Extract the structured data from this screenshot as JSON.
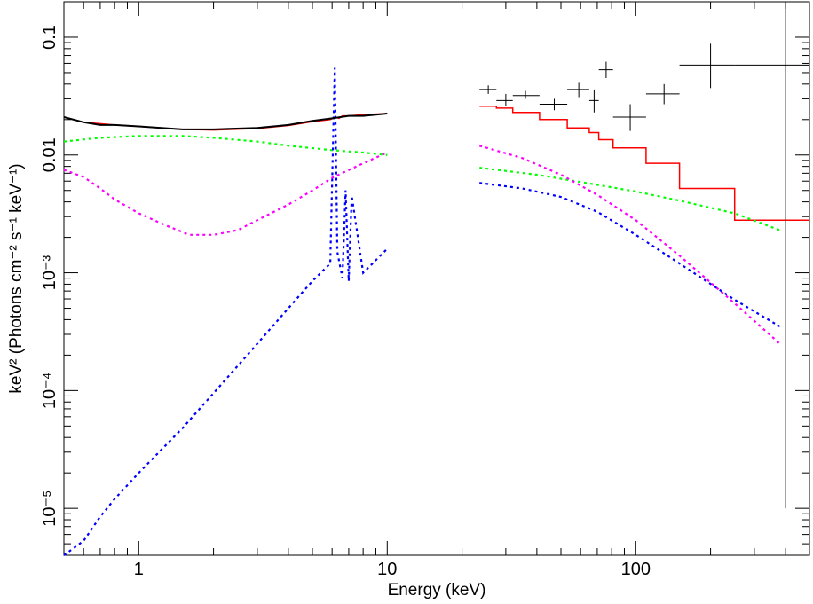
{
  "chart_data": {
    "type": "line",
    "xlabel": "Energy (keV)",
    "ylabel": "keV² (Photons cm⁻² s⁻¹ keV⁻¹)",
    "x_scale": "log",
    "y_scale": "log",
    "xlim": [
      0.5,
      500
    ],
    "ylim": [
      4e-06,
      0.2
    ],
    "x_ticks": [
      {
        "value": 1,
        "label": "1"
      },
      {
        "value": 10,
        "label": "10"
      },
      {
        "value": 100,
        "label": "100"
      }
    ],
    "y_ticks": [
      {
        "value": 0.1,
        "label": "0.1"
      },
      {
        "value": 0.01,
        "label": "0.01"
      },
      {
        "value": 0.001,
        "label": "10⁻³"
      },
      {
        "value": 0.0001,
        "label": "10⁻⁴"
      },
      {
        "value": 1e-05,
        "label": "10⁻⁵"
      }
    ],
    "grid": false,
    "legend": "none",
    "colors": {
      "data": "#000000",
      "total_model": "#ff0000",
      "component_green": "#00ff00",
      "component_magenta": "#ff00ff",
      "component_blue": "#0000ff"
    },
    "low_energy_data": {
      "x": [
        0.5,
        0.6,
        0.7,
        0.8,
        1,
        1.5,
        2,
        3,
        4,
        5,
        6,
        7,
        8,
        9,
        10
      ],
      "y": [
        0.021,
        0.019,
        0.018,
        0.018,
        0.0175,
        0.0165,
        0.0165,
        0.017,
        0.018,
        0.0195,
        0.0205,
        0.0215,
        0.0215,
        0.022,
        0.0225
      ]
    },
    "high_energy_data": [
      {
        "x": 25.5,
        "xerr": [
          23.5,
          27.5
        ],
        "y": 0.036,
        "yerr": [
          0.033,
          0.039
        ]
      },
      {
        "x": 30,
        "xerr": [
          27.5,
          32
        ],
        "y": 0.029,
        "yerr": [
          0.026,
          0.033
        ]
      },
      {
        "x": 36,
        "xerr": [
          32,
          41
        ],
        "y": 0.032,
        "yerr": [
          0.03,
          0.035
        ]
      },
      {
        "x": 47,
        "xerr": [
          41,
          53
        ],
        "y": 0.027,
        "yerr": [
          0.024,
          0.03
        ]
      },
      {
        "x": 59,
        "xerr": [
          53,
          65
        ],
        "y": 0.036,
        "yerr": [
          0.031,
          0.041
        ]
      },
      {
        "x": 68,
        "xerr": [
          65,
          71
        ],
        "y": 0.029,
        "yerr": [
          0.023,
          0.036
        ]
      },
      {
        "x": 76,
        "xerr": [
          71,
          81
        ],
        "y": 0.053,
        "yerr": [
          0.045,
          0.062
        ]
      },
      {
        "x": 95,
        "xerr": [
          81,
          110
        ],
        "y": 0.021,
        "yerr": [
          0.016,
          0.027
        ]
      },
      {
        "x": 130,
        "xerr": [
          110,
          150
        ],
        "y": 0.033,
        "yerr": [
          0.027,
          0.04
        ]
      },
      {
        "x": 200,
        "xerr": [
          150,
          250
        ],
        "y": 0.058,
        "yerr": [
          0.037,
          0.088
        ]
      },
      {
        "x": 400,
        "xerr": [
          250,
          500
        ],
        "y": 0.058,
        "yerr": [
          1e-05,
          0.2
        ]
      }
    ],
    "series": [
      {
        "color": "total_model",
        "style": "solid",
        "segments": [
          {
            "x": [
              0.5,
              0.6,
              0.8,
              1,
              1.5,
              2,
              3,
              4,
              5,
              5.9,
              6.2,
              6.4,
              6.6,
              7,
              8,
              10
            ],
            "y": [
              0.021,
              0.019,
              0.018,
              0.0175,
              0.0165,
              0.0163,
              0.0168,
              0.0178,
              0.0192,
              0.02,
              0.021,
              0.0205,
              0.0215,
              0.0215,
              0.022,
              0.0225
            ]
          }
        ],
        "steps": [
          {
            "x0": 23.5,
            "x1": 27.5,
            "y": 0.026
          },
          {
            "x0": 27.5,
            "x1": 32,
            "y": 0.025
          },
          {
            "x0": 32,
            "x1": 41,
            "y": 0.023
          },
          {
            "x0": 41,
            "x1": 53,
            "y": 0.02
          },
          {
            "x0": 53,
            "x1": 65,
            "y": 0.017
          },
          {
            "x0": 65,
            "x1": 71,
            "y": 0.0155
          },
          {
            "x0": 71,
            "x1": 81,
            "y": 0.0135
          },
          {
            "x0": 81,
            "x1": 110,
            "y": 0.0115
          },
          {
            "x0": 110,
            "x1": 150,
            "y": 0.0085
          },
          {
            "x0": 150,
            "x1": 250,
            "y": 0.0052
          },
          {
            "x0": 250,
            "x1": 500,
            "y": 0.0028
          }
        ]
      },
      {
        "color": "component_green",
        "style": "dotted",
        "segments": [
          {
            "x": [
              0.5,
              0.7,
              1,
              1.5,
              2,
              3,
              4,
              6,
              8,
              10
            ],
            "y": [
              0.013,
              0.014,
              0.0145,
              0.0145,
              0.014,
              0.013,
              0.012,
              0.011,
              0.0105,
              0.01
            ]
          },
          {
            "x": [
              23.5,
              40,
              60,
              100,
              150,
              250,
              380
            ],
            "y": [
              0.0078,
              0.0068,
              0.0059,
              0.0049,
              0.0041,
              0.0032,
              0.0023
            ]
          }
        ]
      },
      {
        "color": "component_magenta",
        "style": "dotted",
        "segments": [
          {
            "x": [
              0.5,
              0.6,
              0.7,
              0.8,
              1,
              1.3,
              1.6,
              2,
              2.5,
              3,
              4,
              5,
              6,
              8,
              10
            ],
            "y": [
              0.0075,
              0.0065,
              0.0052,
              0.0042,
              0.0032,
              0.0025,
              0.0021,
              0.0021,
              0.0023,
              0.0028,
              0.0038,
              0.005,
              0.0064,
              0.0085,
              0.0105
            ]
          },
          {
            "x": [
              23.5,
              35,
              50,
              70,
              100,
              150,
              250,
              380
            ],
            "y": [
              0.012,
              0.0094,
              0.0068,
              0.0046,
              0.0028,
              0.0014,
              0.00055,
              0.00025
            ]
          }
        ]
      },
      {
        "color": "component_blue",
        "style": "dotted",
        "segments": [
          {
            "x": [
              0.5,
              0.6,
              0.7,
              0.8,
              1,
              1.5,
              2,
              3,
              4,
              5,
              5.9,
              6.15,
              6.3,
              6.6,
              6.8,
              7,
              7.2,
              8,
              10
            ],
            "y": [
              4e-06,
              5.3e-06,
              8.5e-06,
              1.2e-05,
              2e-05,
              4.8e-05,
              9.5e-05,
              0.00025,
              0.0005,
              0.00085,
              0.0012,
              0.055,
              0.0015,
              0.0009,
              0.005,
              0.00085,
              0.0045,
              0.001,
              0.0016
            ]
          },
          {
            "x": [
              23.5,
              35,
              50,
              70,
              100,
              150,
              250,
              380
            ],
            "y": [
              0.0058,
              0.0052,
              0.0044,
              0.0033,
              0.0021,
              0.0012,
              0.00059,
              0.00035
            ]
          }
        ]
      }
    ]
  }
}
